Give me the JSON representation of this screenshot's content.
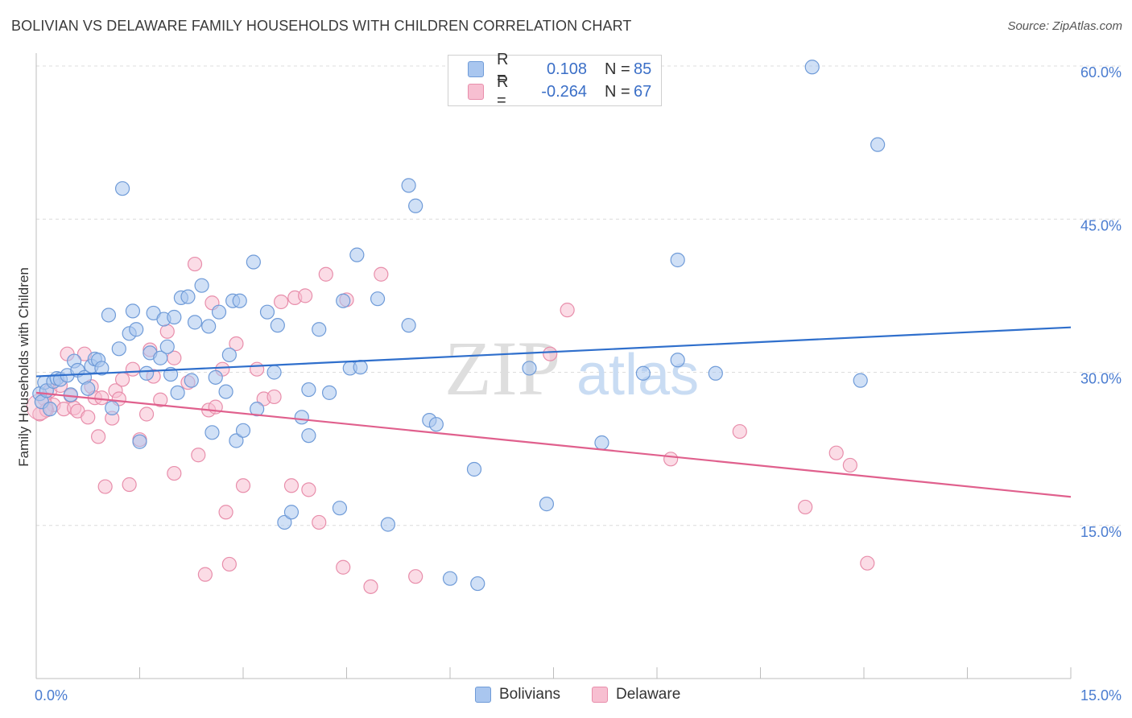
{
  "title": "BOLIVIAN VS DELAWARE FAMILY HOUSEHOLDS WITH CHILDREN CORRELATION CHART",
  "source": "Source: ZipAtlas.com",
  "watermark": {
    "zip": "ZIP",
    "atlas": "atlas"
  },
  "legend": {
    "rows": [
      {
        "r_label": "R =",
        "r_value": "0.108",
        "n_label": "N =",
        "n_value": "85"
      },
      {
        "r_label": "R =",
        "r_value": "-0.264",
        "n_label": "N =",
        "n_value": "67"
      }
    ]
  },
  "bottom_legend": [
    "Bolivians",
    "Delaware"
  ],
  "colors": {
    "blue_fill": "#a9c6ef",
    "blue_stroke": "#6f9bd8",
    "blue_line": "#2f6fcc",
    "pink_fill": "#f7bfd1",
    "pink_stroke": "#e88eab",
    "pink_line": "#e0608d",
    "tick_text": "#4a7cd0",
    "grid": "#dcdcdc"
  },
  "chart_data": {
    "type": "scatter",
    "title": "BOLIVIAN VS DELAWARE FAMILY HOUSEHOLDS WITH CHILDREN CORRELATION CHART",
    "xlabel": "",
    "ylabel": "Family Households with Children",
    "xlim": [
      0,
      15
    ],
    "ylim": [
      0,
      60
    ],
    "x_tick_labels": [
      {
        "value": 0,
        "label": "0.0%"
      },
      {
        "value": 15,
        "label": "15.0%"
      }
    ],
    "y_tick_labels": [
      {
        "value": 15,
        "label": "15.0%"
      },
      {
        "value": 30,
        "label": "30.0%"
      },
      {
        "value": 45,
        "label": "45.0%"
      },
      {
        "value": 60,
        "label": "60.0%"
      }
    ],
    "series": [
      {
        "name": "Bolivians",
        "r": 0.108,
        "n": 85,
        "trend": {
          "x": [
            0,
            15
          ],
          "y": [
            29.6,
            34.4
          ]
        },
        "points": [
          [
            0.05,
            27.9
          ],
          [
            0.08,
            27.1
          ],
          [
            0.12,
            29.0
          ],
          [
            0.15,
            28.2
          ],
          [
            0.2,
            26.4
          ],
          [
            0.25,
            29.1
          ],
          [
            0.3,
            29.4
          ],
          [
            0.35,
            29.3
          ],
          [
            0.45,
            29.7
          ],
          [
            0.5,
            27.8
          ],
          [
            0.55,
            31.1
          ],
          [
            0.6,
            30.2
          ],
          [
            0.7,
            29.5
          ],
          [
            0.75,
            28.4
          ],
          [
            0.8,
            30.6
          ],
          [
            0.85,
            31.3
          ],
          [
            0.9,
            31.2
          ],
          [
            0.95,
            30.4
          ],
          [
            1.05,
            35.6
          ],
          [
            1.1,
            26.5
          ],
          [
            1.2,
            32.3
          ],
          [
            1.25,
            48.0
          ],
          [
            1.35,
            33.8
          ],
          [
            1.4,
            36.0
          ],
          [
            1.45,
            34.2
          ],
          [
            1.5,
            23.2
          ],
          [
            1.6,
            29.9
          ],
          [
            1.65,
            31.9
          ],
          [
            1.7,
            35.8
          ],
          [
            1.8,
            31.4
          ],
          [
            1.85,
            35.2
          ],
          [
            1.9,
            32.5
          ],
          [
            1.95,
            29.8
          ],
          [
            2.0,
            35.4
          ],
          [
            2.05,
            28.0
          ],
          [
            2.1,
            37.3
          ],
          [
            2.2,
            37.4
          ],
          [
            2.25,
            29.2
          ],
          [
            2.3,
            34.9
          ],
          [
            2.4,
            38.5
          ],
          [
            2.5,
            34.5
          ],
          [
            2.55,
            24.1
          ],
          [
            2.6,
            29.5
          ],
          [
            2.65,
            35.9
          ],
          [
            2.75,
            28.1
          ],
          [
            2.8,
            31.7
          ],
          [
            2.85,
            37.0
          ],
          [
            2.9,
            23.3
          ],
          [
            2.95,
            37.0
          ],
          [
            3.0,
            24.3
          ],
          [
            3.15,
            40.8
          ],
          [
            3.2,
            26.4
          ],
          [
            3.35,
            35.9
          ],
          [
            3.45,
            30.0
          ],
          [
            3.5,
            34.6
          ],
          [
            3.6,
            15.3
          ],
          [
            3.7,
            16.3
          ],
          [
            3.85,
            25.6
          ],
          [
            3.95,
            28.3
          ],
          [
            3.95,
            23.8
          ],
          [
            4.1,
            34.2
          ],
          [
            4.25,
            28.0
          ],
          [
            4.4,
            16.7
          ],
          [
            4.45,
            37.0
          ],
          [
            4.55,
            30.4
          ],
          [
            4.65,
            41.5
          ],
          [
            4.7,
            30.5
          ],
          [
            4.95,
            37.2
          ],
          [
            5.1,
            15.1
          ],
          [
            5.4,
            34.6
          ],
          [
            5.4,
            48.3
          ],
          [
            5.5,
            46.3
          ],
          [
            5.7,
            25.3
          ],
          [
            5.8,
            24.9
          ],
          [
            6.0,
            9.8
          ],
          [
            6.35,
            20.5
          ],
          [
            6.4,
            9.3
          ],
          [
            7.15,
            30.4
          ],
          [
            7.4,
            17.1
          ],
          [
            8.2,
            23.1
          ],
          [
            8.8,
            29.9
          ],
          [
            9.3,
            41.0
          ],
          [
            9.3,
            31.2
          ],
          [
            9.85,
            29.9
          ],
          [
            11.25,
            59.9
          ],
          [
            11.95,
            29.2
          ],
          [
            12.2,
            52.3
          ]
        ]
      },
      {
        "name": "Delaware",
        "r": -0.264,
        "n": 67,
        "trend": {
          "x": [
            0,
            15
          ],
          "y": [
            28.0,
            17.8
          ]
        },
        "points": [
          [
            0.05,
            25.9
          ],
          [
            0.12,
            27.4
          ],
          [
            0.2,
            28.2
          ],
          [
            0.25,
            26.8
          ],
          [
            0.35,
            28.7
          ],
          [
            0.4,
            26.4
          ],
          [
            0.45,
            31.8
          ],
          [
            0.5,
            27.7
          ],
          [
            0.55,
            26.5
          ],
          [
            0.6,
            26.2
          ],
          [
            0.7,
            31.8
          ],
          [
            0.75,
            25.6
          ],
          [
            0.8,
            28.6
          ],
          [
            0.85,
            27.5
          ],
          [
            0.9,
            23.7
          ],
          [
            0.95,
            27.5
          ],
          [
            1.0,
            18.8
          ],
          [
            1.1,
            25.5
          ],
          [
            1.15,
            28.2
          ],
          [
            1.2,
            27.4
          ],
          [
            1.25,
            29.3
          ],
          [
            1.35,
            19.0
          ],
          [
            1.4,
            30.3
          ],
          [
            1.5,
            23.4
          ],
          [
            1.6,
            25.9
          ],
          [
            1.65,
            32.2
          ],
          [
            1.7,
            29.6
          ],
          [
            1.8,
            27.3
          ],
          [
            1.9,
            34.0
          ],
          [
            2.0,
            31.4
          ],
          [
            2.0,
            20.1
          ],
          [
            2.2,
            29.0
          ],
          [
            2.3,
            40.6
          ],
          [
            2.35,
            21.9
          ],
          [
            2.45,
            10.2
          ],
          [
            2.5,
            26.3
          ],
          [
            2.55,
            36.8
          ],
          [
            2.6,
            26.6
          ],
          [
            2.7,
            30.3
          ],
          [
            2.75,
            16.3
          ],
          [
            2.8,
            11.2
          ],
          [
            2.9,
            32.8
          ],
          [
            3.0,
            18.9
          ],
          [
            3.2,
            30.3
          ],
          [
            3.3,
            27.4
          ],
          [
            3.45,
            27.6
          ],
          [
            3.55,
            36.9
          ],
          [
            3.7,
            18.9
          ],
          [
            3.75,
            37.3
          ],
          [
            3.9,
            37.5
          ],
          [
            3.95,
            18.5
          ],
          [
            4.1,
            15.3
          ],
          [
            4.2,
            39.6
          ],
          [
            4.45,
            10.9
          ],
          [
            4.5,
            37.1
          ],
          [
            4.85,
            9.0
          ],
          [
            5.0,
            39.6
          ],
          [
            5.5,
            10.0
          ],
          [
            7.45,
            31.8
          ],
          [
            7.7,
            36.1
          ],
          [
            9.2,
            21.5
          ],
          [
            10.2,
            24.2
          ],
          [
            11.15,
            16.8
          ],
          [
            11.6,
            22.1
          ],
          [
            11.8,
            20.9
          ],
          [
            12.05,
            11.3
          ],
          [
            0.15,
            26.3
          ]
        ]
      }
    ]
  }
}
